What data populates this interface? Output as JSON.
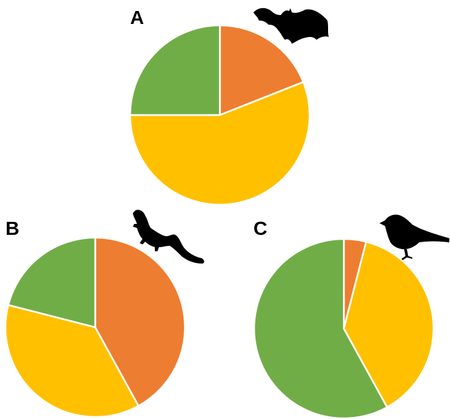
{
  "colors": {
    "orange": "#ED7D31",
    "yellow": "#FFC000",
    "green": "#70AD47",
    "silhouette": "#000000"
  },
  "chart_data": [
    {
      "type": "pie",
      "panel": "A",
      "icon": "bat-icon",
      "slices": [
        {
          "color": "#ED7D31",
          "value": 19
        },
        {
          "color": "#FFC000",
          "value": 56
        },
        {
          "color": "#70AD47",
          "value": 25
        }
      ]
    },
    {
      "type": "pie",
      "panel": "B",
      "icon": "lizard-icon",
      "slices": [
        {
          "color": "#ED7D31",
          "value": 42
        },
        {
          "color": "#FFC000",
          "value": 37
        },
        {
          "color": "#70AD47",
          "value": 21
        }
      ]
    },
    {
      "type": "pie",
      "panel": "C",
      "icon": "bird-icon",
      "slices": [
        {
          "color": "#ED7D31",
          "value": 4
        },
        {
          "color": "#FFC000",
          "value": 38
        },
        {
          "color": "#70AD47",
          "value": 58
        }
      ]
    }
  ]
}
